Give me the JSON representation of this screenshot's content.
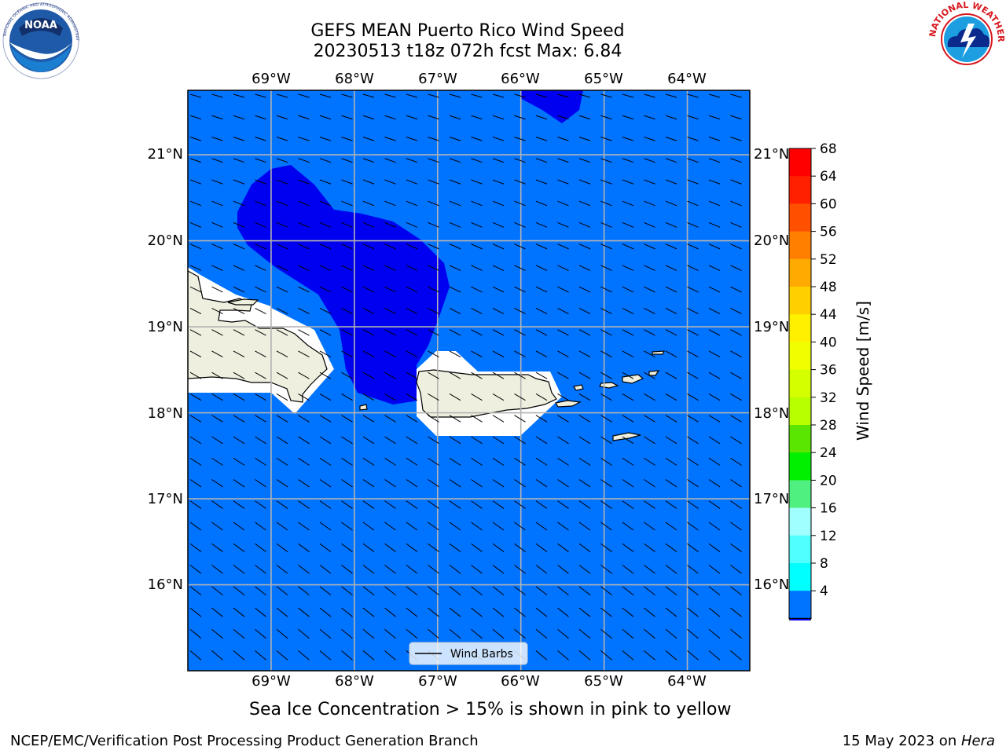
{
  "title": {
    "line1": "GEFS MEAN Puerto Rico Wind Speed",
    "line2": "20230513 t18z 072h fcst   Max: 6.84"
  },
  "map": {
    "lon_range": [
      -70,
      -63.25
    ],
    "lat_range": [
      15,
      21.75
    ],
    "lon_labels": [
      "69°W",
      "68°W",
      "67°W",
      "66°W",
      "65°W",
      "64°W"
    ],
    "lat_labels": [
      "21°N",
      "20°N",
      "19°N",
      "18°N",
      "17°N",
      "16°N"
    ],
    "base_color": "#0073ff",
    "low_color": "#0000f0",
    "land_color": "#efefdf",
    "legend_label": "Wind Barbs"
  },
  "colorbar": {
    "label": "Wind Speed [m/s]",
    "ticks": [
      "68",
      "64",
      "60",
      "56",
      "52",
      "48",
      "44",
      "40",
      "36",
      "32",
      "28",
      "24",
      "20",
      "16",
      "12",
      "8",
      "4"
    ],
    "colors": [
      "#ff0000",
      "#ff2000",
      "#ff5000",
      "#ff8000",
      "#ffaa00",
      "#ffd000",
      "#fff000",
      "#f0ff00",
      "#d4ff00",
      "#b8ff00",
      "#5ae600",
      "#00f000",
      "#50f080",
      "#a0ffff",
      "#50ffff",
      "#00ffff",
      "#0073ff"
    ],
    "under_color": "#0000f0"
  },
  "logos": {
    "noaa_text": "NOAA",
    "nws_text": "NATIONAL WEATHER SERVICE",
    "noaa_ring": "NATIONAL OCEANIC AND ATMOSPHERIC ADMINISTRATION"
  },
  "note": "Sea Ice Concentration > 15% is shown in pink to yellow",
  "footer": {
    "left": "NCEP/EMC/Verification Post Processing Product Generation Branch",
    "right_prefix": "15 May 2023 on ",
    "right_machine": "Hera"
  }
}
